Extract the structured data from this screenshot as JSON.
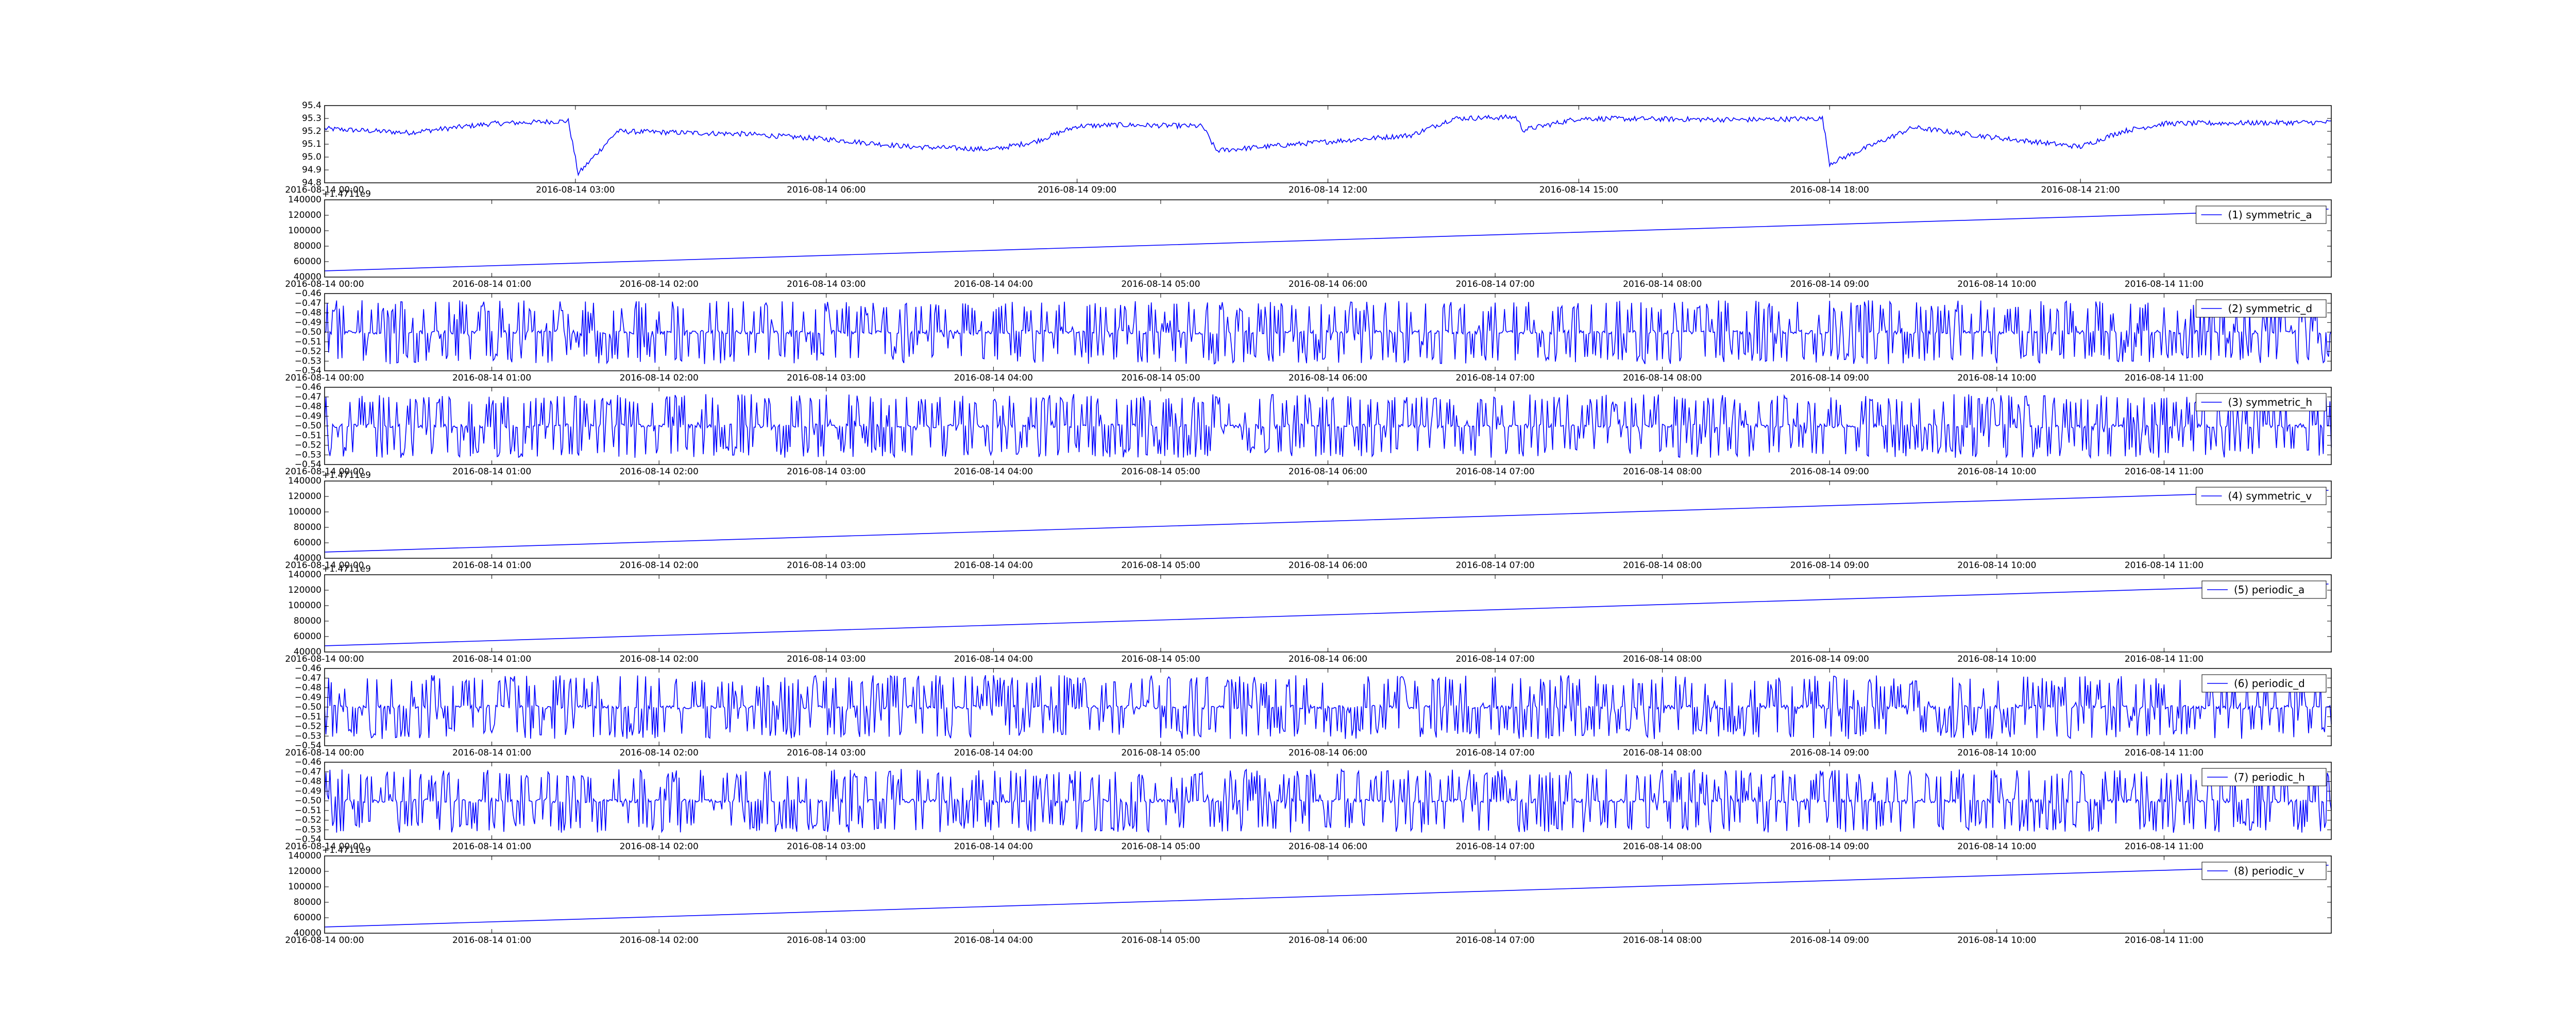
{
  "colors": {
    "line": "#0000ff",
    "axes": "#000000",
    "background": "#ffffff"
  },
  "chart_data": [
    {
      "id": "price",
      "type": "line",
      "title": "",
      "legend": "",
      "ylim": [
        94.8,
        95.4
      ],
      "yticks": [
        "94.8",
        "94.9",
        "95.0",
        "95.1",
        "95.2",
        "95.3",
        "95.4"
      ],
      "xlim": [
        "2016-08-14 00:00",
        "2016-08-15 00:00"
      ],
      "xticks": [
        "2016-08-14 00:00",
        "2016-08-14 03:00",
        "2016-08-14 06:00",
        "2016-08-14 09:00",
        "2016-08-14 12:00",
        "2016-08-14 15:00",
        "2016-08-14 18:00",
        "2016-08-14 21:00"
      ],
      "series": [
        {
          "x": [
            "00:00",
            "01:00",
            "02:00",
            "02:55",
            "03:02",
            "03:30",
            "05:00",
            "06:00",
            "07:00",
            "08:00",
            "08:30",
            "09:00",
            "09:30",
            "10:30",
            "10:40",
            "12:00",
            "13:00",
            "13:30",
            "14:15",
            "14:20",
            "15:00",
            "17:00",
            "17:55",
            "18:00",
            "19:00",
            "20:00",
            "21:00",
            "21:30",
            "22:00",
            "23:59"
          ],
          "y": [
            95.22,
            95.19,
            95.26,
            95.28,
            94.87,
            95.2,
            95.18,
            95.14,
            95.08,
            95.06,
            95.12,
            95.24,
            95.25,
            95.24,
            95.05,
            95.12,
            95.17,
            95.3,
            95.31,
            95.21,
            95.3,
            95.29,
            95.3,
            94.95,
            95.23,
            95.15,
            95.08,
            95.2,
            95.26,
            95.27
          ],
          "noise": 0.02
        }
      ]
    },
    {
      "id": "symmetric_a",
      "type": "line",
      "legend": "(1) symmetric_a",
      "offset_text": "+1.4711e9",
      "ylim": [
        40000,
        140000
      ],
      "yticks": [
        "40000",
        "60000",
        "80000",
        "100000",
        "120000",
        "140000"
      ],
      "xlim": [
        "2016-08-14 00:00",
        "2016-08-14 12:00"
      ],
      "xticks": [
        "2016-08-14 00:00",
        "2016-08-14 01:00",
        "2016-08-14 02:00",
        "2016-08-14 03:00",
        "2016-08-14 04:00",
        "2016-08-14 05:00",
        "2016-08-14 06:00",
        "2016-08-14 07:00",
        "2016-08-14 08:00",
        "2016-08-14 09:00",
        "2016-08-14 10:00",
        "2016-08-14 11:00"
      ],
      "series": [
        {
          "x": [
            "00:00",
            "11:59"
          ],
          "y": [
            48000,
            128000
          ]
        }
      ]
    },
    {
      "id": "symmetric_d",
      "type": "line",
      "legend": "(2) symmetric_d",
      "ylim": [
        -0.54,
        -0.46
      ],
      "yticks": [
        "−0.54",
        "−0.53",
        "−0.52",
        "−0.51",
        "−0.50",
        "−0.49",
        "−0.48",
        "−0.47",
        "−0.46"
      ],
      "xlim": [
        "2016-08-14 00:00",
        "2016-08-14 12:00"
      ],
      "xticks": [
        "2016-08-14 00:00",
        "2016-08-14 01:00",
        "2016-08-14 02:00",
        "2016-08-14 03:00",
        "2016-08-14 04:00",
        "2016-08-14 05:00",
        "2016-08-14 06:00",
        "2016-08-14 07:00",
        "2016-08-14 08:00",
        "2016-08-14 09:00",
        "2016-08-14 10:00",
        "2016-08-14 11:00"
      ],
      "series": [
        {
          "baseline": -0.5,
          "spike_range": [
            -0.533,
            -0.467
          ]
        }
      ]
    },
    {
      "id": "symmetric_h",
      "type": "line",
      "legend": "(3) symmetric_h",
      "ylim": [
        -0.54,
        -0.46
      ],
      "yticks": [
        "−0.54",
        "−0.53",
        "−0.52",
        "−0.51",
        "−0.50",
        "−0.49",
        "−0.48",
        "−0.47",
        "−0.46"
      ],
      "xlim": [
        "2016-08-14 00:00",
        "2016-08-14 12:00"
      ],
      "xticks": [
        "2016-08-14 00:00",
        "2016-08-14 01:00",
        "2016-08-14 02:00",
        "2016-08-14 03:00",
        "2016-08-14 04:00",
        "2016-08-14 05:00",
        "2016-08-14 06:00",
        "2016-08-14 07:00",
        "2016-08-14 08:00",
        "2016-08-14 09:00",
        "2016-08-14 10:00",
        "2016-08-14 11:00"
      ],
      "series": [
        {
          "baseline": -0.5,
          "spike_range": [
            -0.533,
            -0.467
          ]
        }
      ]
    },
    {
      "id": "symmetric_v",
      "type": "line",
      "legend": "(4) symmetric_v",
      "offset_text": "+1.4711e9",
      "ylim": [
        40000,
        140000
      ],
      "yticks": [
        "40000",
        "60000",
        "80000",
        "100000",
        "120000",
        "140000"
      ],
      "xlim": [
        "2016-08-14 00:00",
        "2016-08-14 12:00"
      ],
      "xticks": [
        "2016-08-14 00:00",
        "2016-08-14 01:00",
        "2016-08-14 02:00",
        "2016-08-14 03:00",
        "2016-08-14 04:00",
        "2016-08-14 05:00",
        "2016-08-14 06:00",
        "2016-08-14 07:00",
        "2016-08-14 08:00",
        "2016-08-14 09:00",
        "2016-08-14 10:00",
        "2016-08-14 11:00"
      ],
      "series": [
        {
          "x": [
            "00:00",
            "11:59"
          ],
          "y": [
            48000,
            128000
          ]
        }
      ]
    },
    {
      "id": "periodic_a",
      "type": "line",
      "legend": "(5) periodic_a",
      "offset_text": "+1.4711e9",
      "ylim": [
        40000,
        140000
      ],
      "yticks": [
        "40000",
        "60000",
        "80000",
        "100000",
        "120000",
        "140000"
      ],
      "xlim": [
        "2016-08-14 00:00",
        "2016-08-14 12:00"
      ],
      "xticks": [
        "2016-08-14 00:00",
        "2016-08-14 01:00",
        "2016-08-14 02:00",
        "2016-08-14 03:00",
        "2016-08-14 04:00",
        "2016-08-14 05:00",
        "2016-08-14 06:00",
        "2016-08-14 07:00",
        "2016-08-14 08:00",
        "2016-08-14 09:00",
        "2016-08-14 10:00",
        "2016-08-14 11:00"
      ],
      "series": [
        {
          "x": [
            "00:00",
            "11:59"
          ],
          "y": [
            48000,
            128000
          ]
        }
      ]
    },
    {
      "id": "periodic_d",
      "type": "line",
      "legend": "(6) periodic_d",
      "ylim": [
        -0.54,
        -0.46
      ],
      "yticks": [
        "−0.54",
        "−0.53",
        "−0.52",
        "−0.51",
        "−0.50",
        "−0.49",
        "−0.48",
        "−0.47",
        "−0.46"
      ],
      "xlim": [
        "2016-08-14 00:00",
        "2016-08-14 12:00"
      ],
      "xticks": [
        "2016-08-14 00:00",
        "2016-08-14 01:00",
        "2016-08-14 02:00",
        "2016-08-14 03:00",
        "2016-08-14 04:00",
        "2016-08-14 05:00",
        "2016-08-14 06:00",
        "2016-08-14 07:00",
        "2016-08-14 08:00",
        "2016-08-14 09:00",
        "2016-08-14 10:00",
        "2016-08-14 11:00"
      ],
      "series": [
        {
          "baseline": -0.5,
          "spike_range": [
            -0.533,
            -0.467
          ]
        }
      ]
    },
    {
      "id": "periodic_h",
      "type": "line",
      "legend": "(7) periodic_h",
      "ylim": [
        -0.54,
        -0.46
      ],
      "yticks": [
        "−0.54",
        "−0.53",
        "−0.52",
        "−0.51",
        "−0.50",
        "−0.49",
        "−0.48",
        "−0.47",
        "−0.46"
      ],
      "xlim": [
        "2016-08-14 00:00",
        "2016-08-14 12:00"
      ],
      "xticks": [
        "2016-08-14 00:00",
        "2016-08-14 01:00",
        "2016-08-14 02:00",
        "2016-08-14 03:00",
        "2016-08-14 04:00",
        "2016-08-14 05:00",
        "2016-08-14 06:00",
        "2016-08-14 07:00",
        "2016-08-14 08:00",
        "2016-08-14 09:00",
        "2016-08-14 10:00",
        "2016-08-14 11:00"
      ],
      "series": [
        {
          "baseline": -0.5,
          "spike_range": [
            -0.533,
            -0.467
          ]
        }
      ]
    },
    {
      "id": "periodic_v",
      "type": "line",
      "legend": "(8) periodic_v",
      "offset_text": "+1.4711e9",
      "ylim": [
        40000,
        140000
      ],
      "yticks": [
        "40000",
        "60000",
        "80000",
        "100000",
        "120000",
        "140000"
      ],
      "xlim": [
        "2016-08-14 00:00",
        "2016-08-14 12:00"
      ],
      "xticks": [
        "2016-08-14 00:00",
        "2016-08-14 01:00",
        "2016-08-14 02:00",
        "2016-08-14 03:00",
        "2016-08-14 04:00",
        "2016-08-14 05:00",
        "2016-08-14 06:00",
        "2016-08-14 07:00",
        "2016-08-14 08:00",
        "2016-08-14 09:00",
        "2016-08-14 10:00",
        "2016-08-14 11:00"
      ],
      "series": [
        {
          "x": [
            "00:00",
            "11:59"
          ],
          "y": [
            48000,
            128000
          ]
        }
      ]
    }
  ]
}
